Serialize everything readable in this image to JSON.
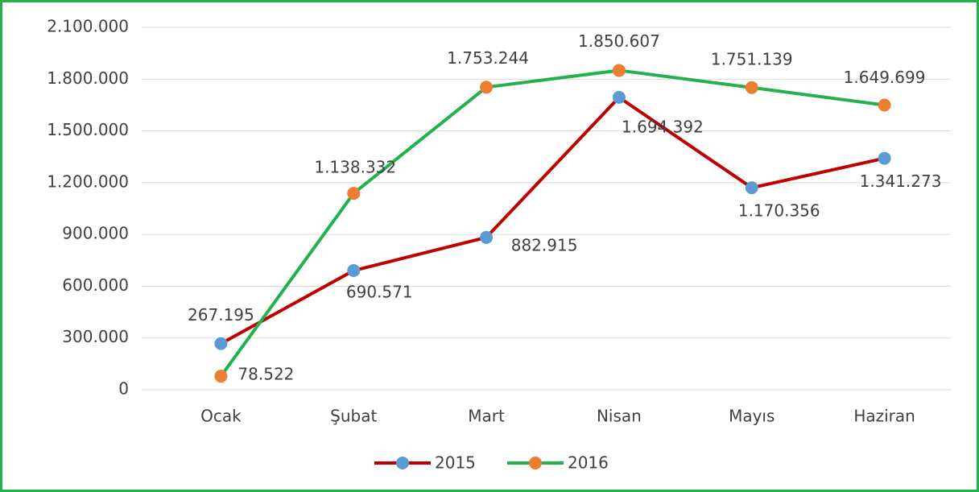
{
  "chart_data": {
    "type": "line",
    "categories": [
      "Ocak",
      "Şubat",
      "Mart",
      "Nisan",
      "Mayıs",
      "Haziran"
    ],
    "series": [
      {
        "name": "2015",
        "color": "#c00000",
        "marker_color": "#5b9bd5",
        "values": [
          267195,
          690571,
          882915,
          1694392,
          1170356,
          1341273
        ],
        "value_labels": [
          "267.195",
          "690.571",
          "882.915",
          "1.694.392",
          "1.170.356",
          "1.341.273"
        ]
      },
      {
        "name": "2016",
        "color": "#22b14c",
        "marker_color": "#ed7d31",
        "values": [
          78522,
          1138332,
          1753244,
          1850607,
          1751139,
          1649699
        ],
        "value_labels": [
          "78.522",
          "1.138.332",
          "1.753.244",
          "1.850.607",
          "1.751.139",
          "1.649.699"
        ]
      }
    ],
    "ylim": [
      0,
      2100000
    ],
    "yticks": [
      0,
      {
        "value": 300000,
        "label": "300.000"
      },
      {
        "value": 600000,
        "label": "600.000"
      },
      {
        "value": 900000,
        "label": "900.000"
      },
      {
        "value": 1200000,
        "label": "1.200.000"
      },
      {
        "value": 1500000,
        "label": "1.500.000"
      },
      {
        "value": 1800000,
        "label": "1.800.000"
      },
      {
        "value": 2100000,
        "label": "2.100.000"
      }
    ],
    "grid": true,
    "legend": "bottom"
  }
}
